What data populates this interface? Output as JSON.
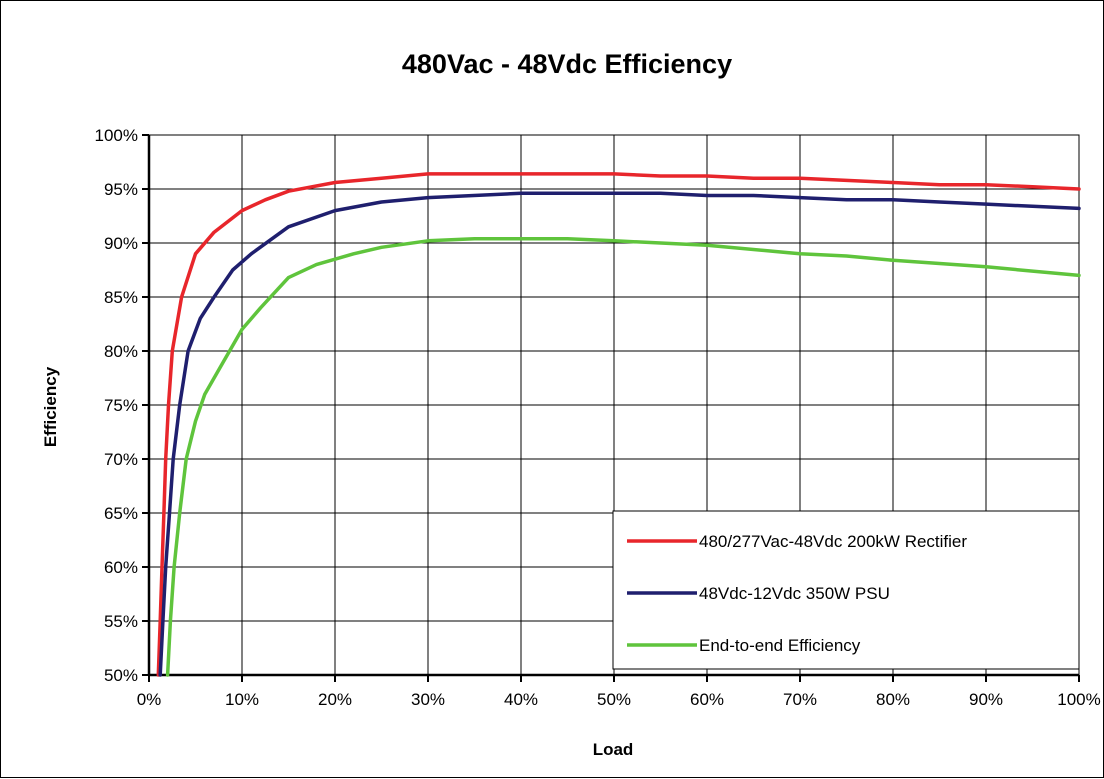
{
  "chart_data": {
    "type": "line",
    "title": "480Vac - 48Vdc Efficiency",
    "xlabel": "Load",
    "ylabel": "Efficiency",
    "xlim": [
      0,
      100
    ],
    "ylim": [
      50,
      100
    ],
    "x_ticks": [
      "0%",
      "10%",
      "20%",
      "30%",
      "40%",
      "50%",
      "60%",
      "70%",
      "80%",
      "90%",
      "100%"
    ],
    "y_ticks": [
      "50%",
      "55%",
      "60%",
      "65%",
      "70%",
      "75%",
      "80%",
      "85%",
      "90%",
      "95%",
      "100%"
    ],
    "grid": true,
    "legend_position": "bottom-right",
    "series": [
      {
        "name": "480/277Vac-48Vdc 200kW Rectifier",
        "color": "#e8262b",
        "points": [
          [
            1,
            50
          ],
          [
            1.2,
            55
          ],
          [
            1.4,
            60
          ],
          [
            1.6,
            65
          ],
          [
            1.8,
            70
          ],
          [
            2.1,
            75
          ],
          [
            2.5,
            80
          ],
          [
            3.5,
            85
          ],
          [
            5,
            89
          ],
          [
            7,
            91
          ],
          [
            10,
            93
          ],
          [
            12.5,
            94
          ],
          [
            15,
            94.8
          ],
          [
            20,
            95.6
          ],
          [
            25,
            96
          ],
          [
            30,
            96.4
          ],
          [
            40,
            96.4
          ],
          [
            50,
            96.4
          ],
          [
            55,
            96.2
          ],
          [
            60,
            96.2
          ],
          [
            65,
            96
          ],
          [
            70,
            96
          ],
          [
            80,
            95.6
          ],
          [
            85,
            95.4
          ],
          [
            90,
            95.4
          ],
          [
            95,
            95.2
          ],
          [
            100,
            95
          ]
        ]
      },
      {
        "name": "48Vdc-12Vdc 350W PSU",
        "color": "#1f1f6e",
        "points": [
          [
            1.2,
            50
          ],
          [
            1.5,
            55
          ],
          [
            1.8,
            60
          ],
          [
            2.2,
            65
          ],
          [
            2.6,
            70
          ],
          [
            3.3,
            75
          ],
          [
            4.2,
            80
          ],
          [
            5.5,
            83
          ],
          [
            7,
            85
          ],
          [
            9,
            87.5
          ],
          [
            11,
            89
          ],
          [
            15,
            91.5
          ],
          [
            20,
            93
          ],
          [
            25,
            93.8
          ],
          [
            30,
            94.2
          ],
          [
            40,
            94.6
          ],
          [
            50,
            94.6
          ],
          [
            55,
            94.6
          ],
          [
            60,
            94.4
          ],
          [
            65,
            94.4
          ],
          [
            70,
            94.2
          ],
          [
            75,
            94
          ],
          [
            80,
            94
          ],
          [
            85,
            93.8
          ],
          [
            90,
            93.6
          ],
          [
            95,
            93.4
          ],
          [
            100,
            93.2
          ]
        ]
      },
      {
        "name": "End-to-end Efficiency",
        "color": "#5fc43c",
        "points": [
          [
            2,
            50
          ],
          [
            2.3,
            55
          ],
          [
            2.7,
            60
          ],
          [
            3.3,
            65
          ],
          [
            4,
            70
          ],
          [
            5,
            73.5
          ],
          [
            6,
            76
          ],
          [
            8,
            79
          ],
          [
            10,
            82
          ],
          [
            12,
            84
          ],
          [
            15,
            86.8
          ],
          [
            18,
            88
          ],
          [
            22,
            89
          ],
          [
            25,
            89.6
          ],
          [
            30,
            90.2
          ],
          [
            35,
            90.4
          ],
          [
            40,
            90.4
          ],
          [
            45,
            90.4
          ],
          [
            50,
            90.2
          ],
          [
            60,
            89.8
          ],
          [
            70,
            89
          ],
          [
            75,
            88.8
          ],
          [
            80,
            88.4
          ],
          [
            90,
            87.8
          ],
          [
            100,
            87
          ]
        ]
      }
    ]
  }
}
